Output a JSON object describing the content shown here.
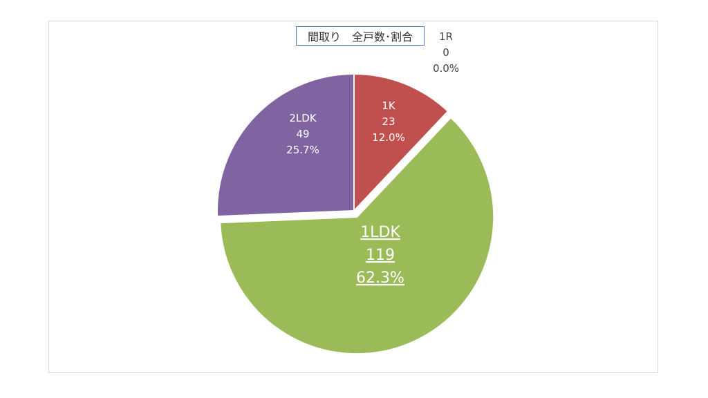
{
  "chart_data": {
    "type": "pie",
    "title": "間取り　全戸数･割合",
    "slices": [
      {
        "name": "1R",
        "value": 0,
        "percent": "0.0%",
        "color": "#4f81bd"
      },
      {
        "name": "1K",
        "value": 23,
        "percent": "12.0%",
        "color": "#c0504d"
      },
      {
        "name": "1LDK",
        "value": 119,
        "percent": "62.3%",
        "color": "#9bbb59"
      },
      {
        "name": "2LDK",
        "value": 49,
        "percent": "25.7%",
        "color": "#8064a2"
      }
    ]
  }
}
